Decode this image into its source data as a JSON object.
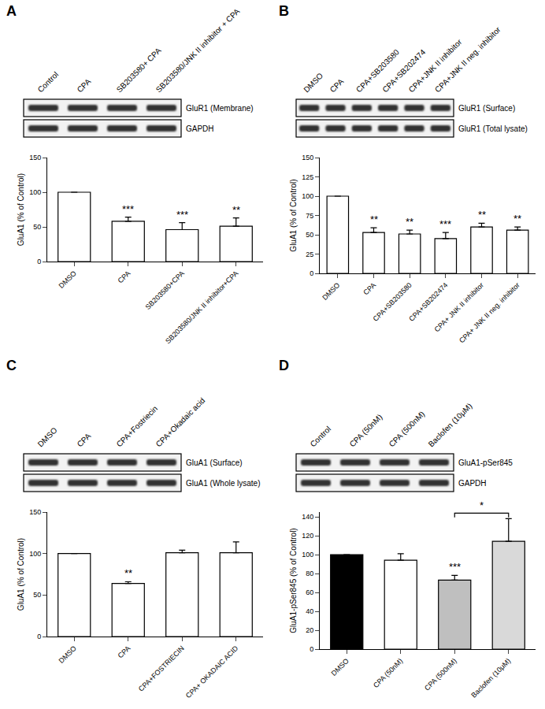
{
  "chart_data": [
    {
      "panel": "A",
      "type": "bar",
      "categories": [
        "DMSO",
        "CPA",
        "SB203580+CPA",
        "SB203580/JNK II inhibitor+CPA"
      ],
      "values": [
        100,
        58,
        46,
        51
      ],
      "error": [
        0,
        6,
        10,
        12
      ],
      "color": "#ffffff",
      "ylabel": "GluA1 (% of Control)",
      "ylim": [
        0,
        150
      ],
      "yticks": [
        0,
        50,
        100,
        150
      ],
      "annotations": [
        {
          "category": "CPA",
          "text": "***"
        },
        {
          "category": "SB203580+CPA",
          "text": "***"
        },
        {
          "category": "SB203580/JNK II inhibitor+CPA",
          "text": "**"
        }
      ],
      "blot": {
        "lanes": [
          "Control",
          "CPA",
          "SB203580+ CPA",
          "SB203580/JNK II inhibitor + CPA"
        ],
        "rows": [
          "GluR1 (Membrane)",
          "GAPDH"
        ]
      }
    },
    {
      "panel": "B",
      "type": "bar",
      "categories": [
        "DMSO",
        "CPA",
        "CPA+SB203580",
        "CPA+SB202474",
        "CPA+ JNK II inhibitor",
        "CPA+ JNK II neg. inhibitor"
      ],
      "values": [
        100,
        53,
        51,
        45,
        60,
        56
      ],
      "error": [
        0,
        6,
        5,
        8,
        5,
        4
      ],
      "color": "#ffffff",
      "ylabel": "GluA1 (% of Control)",
      "ylim": [
        0,
        150
      ],
      "yticks": [
        0,
        25,
        50,
        75,
        100,
        125,
        150
      ],
      "annotations": [
        {
          "category": "CPA",
          "text": "**"
        },
        {
          "category": "CPA+SB203580",
          "text": "**"
        },
        {
          "category": "CPA+SB202474",
          "text": "***"
        },
        {
          "category": "CPA+ JNK II inhibitor",
          "text": "**"
        },
        {
          "category": "CPA+ JNK II neg. inhibitor",
          "text": "**"
        }
      ],
      "blot": {
        "lanes": [
          "DMSO",
          "CPA",
          "CPA+SB203580",
          "CPA+SB202474",
          "CPA+JNK II inhibitor",
          "CPA+JNK II neg. inhibitor"
        ],
        "rows": [
          "GluR1 (Surface)",
          "GluR1 (Total lysate)"
        ]
      }
    },
    {
      "panel": "C",
      "type": "bar",
      "categories": [
        "DMSO",
        "CPA",
        "CPA+FOSTRIECIN",
        "CPA+ OKADAIC ACID"
      ],
      "values": [
        100,
        64,
        101,
        101
      ],
      "error": [
        0,
        2,
        3,
        13
      ],
      "color": "#ffffff",
      "ylabel": "GluA1 (% of Control)",
      "ylim": [
        0,
        150
      ],
      "yticks": [
        0,
        50,
        100,
        150
      ],
      "annotations": [
        {
          "category": "CPA",
          "text": "**"
        }
      ],
      "blot": {
        "lanes": [
          "DMSO",
          "CPA",
          "CPA+Fostriecin",
          "CPA+Okadaic acid"
        ],
        "rows": [
          "GluA1 (Surface)",
          "GluA1 (Whole lysate)"
        ]
      }
    },
    {
      "panel": "D",
      "type": "bar",
      "categories": [
        "DMSO",
        "CPA (50nM)",
        "CPA (500nM)",
        "Baclofen (10μM)"
      ],
      "values": [
        100,
        94,
        73,
        114
      ],
      "error": [
        0,
        7,
        5,
        24
      ],
      "colors": [
        "#000000",
        "#ffffff",
        "#bfbfbf",
        "#d9d9d9"
      ],
      "ylabel": "GluA1-pSer845 (% of Control)",
      "ylim": [
        0,
        145
      ],
      "yticks": [
        0,
        20,
        40,
        60,
        80,
        100,
        120,
        140
      ],
      "annotations": [
        {
          "category": "CPA (500nM)",
          "text": "***"
        }
      ],
      "brackets": [
        {
          "from": "CPA (500nM)",
          "to": "Baclofen (10μM)",
          "text": "*"
        }
      ],
      "blot": {
        "lanes": [
          "Control",
          "CPA (50nM)",
          "CPA (500nM)",
          "Baclofen (10μM)"
        ],
        "rows": [
          "GluA1-pSer845",
          "GAPDH"
        ]
      }
    }
  ]
}
